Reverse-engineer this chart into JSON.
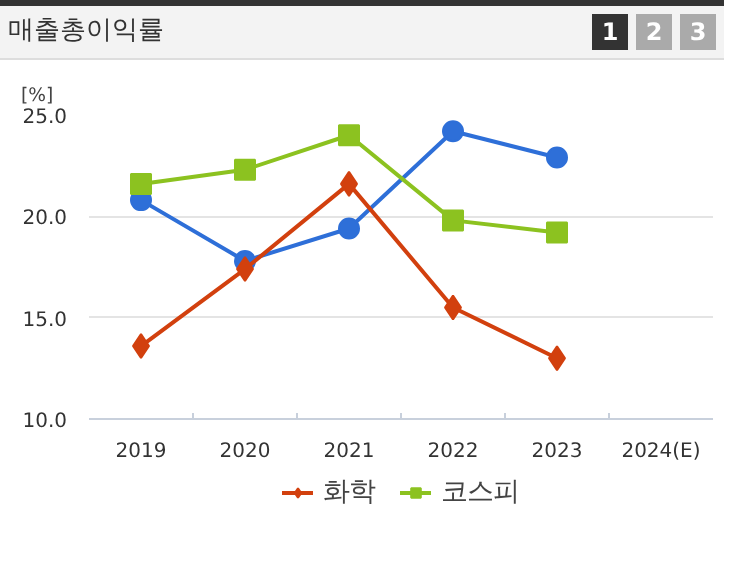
{
  "chart_data": {
    "type": "line",
    "title": "매출총이익률",
    "ylabel": "[%]",
    "annotations": [
      "1",
      "2",
      "3"
    ],
    "categories": [
      "2019",
      "2020",
      "2021",
      "2022",
      "2023",
      "2024(E)"
    ],
    "series": [
      {
        "color": "#2e6fd8",
        "marker": "circle",
        "values": [
          20.8,
          17.8,
          19.4,
          24.2,
          22.9,
          null
        ]
      },
      {
        "name": "화학",
        "color": "#d2400e",
        "marker": "diamond",
        "values": [
          13.6,
          17.4,
          21.6,
          15.5,
          13.0,
          null
        ]
      },
      {
        "name": "코스피",
        "color": "#8cc220",
        "marker": "square",
        "values": [
          21.6,
          22.3,
          24.0,
          19.8,
          19.2,
          null
        ]
      }
    ],
    "ylim": [
      10,
      25
    ],
    "yticks": [
      {
        "value": 10,
        "label": "10.0"
      },
      {
        "value": 15,
        "label": "15.0"
      },
      {
        "value": 20,
        "label": "20.0"
      },
      {
        "value": 25,
        "label": "25.0"
      }
    ],
    "grid": "y",
    "legend": "bottom",
    "line_style": "solid"
  }
}
